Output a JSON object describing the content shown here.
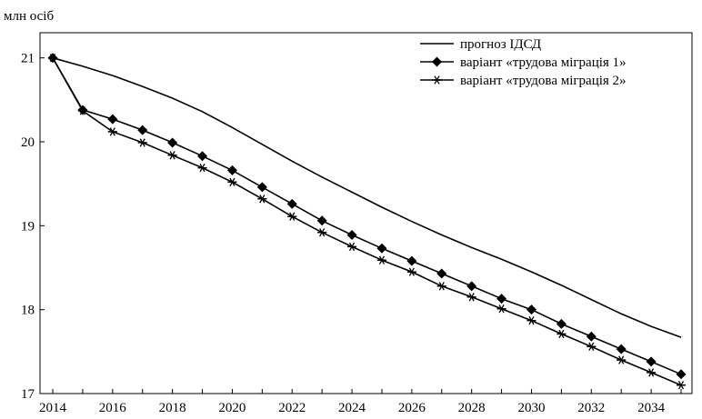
{
  "chart_data": {
    "type": "line",
    "unit_label": "млн осіб",
    "x": [
      2014,
      2015,
      2016,
      2017,
      2018,
      2019,
      2020,
      2021,
      2022,
      2023,
      2024,
      2025,
      2026,
      2027,
      2028,
      2029,
      2030,
      2031,
      2032,
      2033,
      2034,
      2035
    ],
    "xlim": [
      2014,
      2035
    ],
    "ylim": [
      17,
      21.3
    ],
    "xticks": [
      2014,
      2016,
      2018,
      2020,
      2022,
      2024,
      2026,
      2028,
      2030,
      2032,
      2034
    ],
    "yticks": [
      17,
      18,
      19,
      20,
      21
    ],
    "grid": false,
    "legend_position": "top-right",
    "series": [
      {
        "name": "прогноз ІДСД",
        "marker": "none",
        "color": "#000000",
        "values": [
          21.0,
          20.9,
          20.79,
          20.66,
          20.52,
          20.36,
          20.17,
          19.97,
          19.77,
          19.58,
          19.4,
          19.22,
          19.05,
          18.89,
          18.74,
          18.6,
          18.45,
          18.29,
          18.12,
          17.95,
          17.8,
          17.67
        ]
      },
      {
        "name": "варіант «трудова міграція 1»",
        "marker": "diamond",
        "color": "#000000",
        "values": [
          21.0,
          20.38,
          20.27,
          20.14,
          19.99,
          19.83,
          19.66,
          19.46,
          19.26,
          19.06,
          18.89,
          18.73,
          18.58,
          18.43,
          18.28,
          18.13,
          18.0,
          17.83,
          17.68,
          17.53,
          17.38,
          17.23
        ]
      },
      {
        "name": "варіант «трудова міграція 2»",
        "marker": "asterisk",
        "color": "#000000",
        "values": [
          21.0,
          20.37,
          20.12,
          19.99,
          19.84,
          19.69,
          19.52,
          19.32,
          19.11,
          18.92,
          18.75,
          18.59,
          18.45,
          18.28,
          18.15,
          18.01,
          17.87,
          17.71,
          17.56,
          17.4,
          17.25,
          17.1
        ]
      }
    ]
  }
}
